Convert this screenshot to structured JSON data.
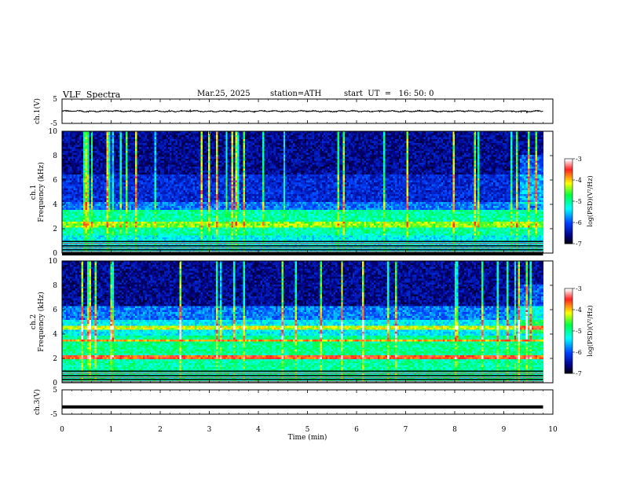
{
  "header": {
    "title": "VLF  Spectra",
    "date": "Mar.25, 2025",
    "station": "station=ATH",
    "start_ut": "start  UT  =   16: 50: 0"
  },
  "chart_data": [
    {
      "type": "line",
      "panel": "ch1-waveform",
      "ylabel": "ch.1(V)",
      "yticks": [
        "5",
        "-5"
      ],
      "ylim": [
        -5,
        5
      ],
      "xlim": [
        0,
        10
      ],
      "trace_span_min": [
        0,
        9.8
      ],
      "series": [
        {
          "values": "waveform centred near 0 V, amplitude about 0.3 V"
        }
      ],
      "line_color": "#000000"
    },
    {
      "type": "heatmap",
      "panel": "ch1-spectrogram",
      "ylabel": "ch.1\nFrequency  (kHz)",
      "yticks": [
        "0",
        "2",
        "4",
        "6",
        "8",
        "10"
      ],
      "ylim": [
        0,
        10
      ],
      "xlim": [
        0,
        10
      ],
      "colorbar": {
        "label": "log(PSD)(V²/Hz)",
        "ticks": [
          "-3",
          "-4",
          "-5",
          "-6",
          "-7"
        ],
        "range": [
          -7,
          -3
        ],
        "colors": [
          "#ffffff",
          "#ff2020",
          "#ffff00",
          "#00ff40",
          "#00ffff",
          "#0040ff",
          "#000080",
          "#000000"
        ]
      }
    },
    {
      "type": "heatmap",
      "panel": "ch2-spectrogram",
      "ylabel": "ch.2\nFrequency  (kHz)",
      "yticks": [
        "0",
        "2",
        "4",
        "6",
        "8",
        "10"
      ],
      "ylim": [
        0,
        10
      ],
      "xlim": [
        0,
        10
      ],
      "colorbar": {
        "label": "log(PSD)(V²/Hz)",
        "ticks": [
          "-3",
          "-4",
          "-5",
          "-6",
          "-7"
        ],
        "range": [
          -7,
          -3
        ],
        "colors": [
          "#ffffff",
          "#ff2020",
          "#ffff00",
          "#00ff40",
          "#00ffff",
          "#0040ff",
          "#000080",
          "#000000"
        ]
      }
    },
    {
      "type": "line",
      "panel": "ch3-waveform",
      "ylabel": "ch.3(V)",
      "yticks": [
        "5",
        "-5"
      ],
      "ylim": [
        -5,
        5
      ],
      "xlim": [
        0,
        10
      ],
      "trace_span_min": [
        0,
        9.8
      ],
      "series": [
        {
          "values": "flat trace at about -2 V"
        }
      ],
      "line_color": "#000000"
    }
  ],
  "x_axis": {
    "label": "Time  (min)",
    "ticks": [
      "0",
      "1",
      "2",
      "3",
      "4",
      "5",
      "6",
      "7",
      "8",
      "9",
      "10"
    ]
  }
}
